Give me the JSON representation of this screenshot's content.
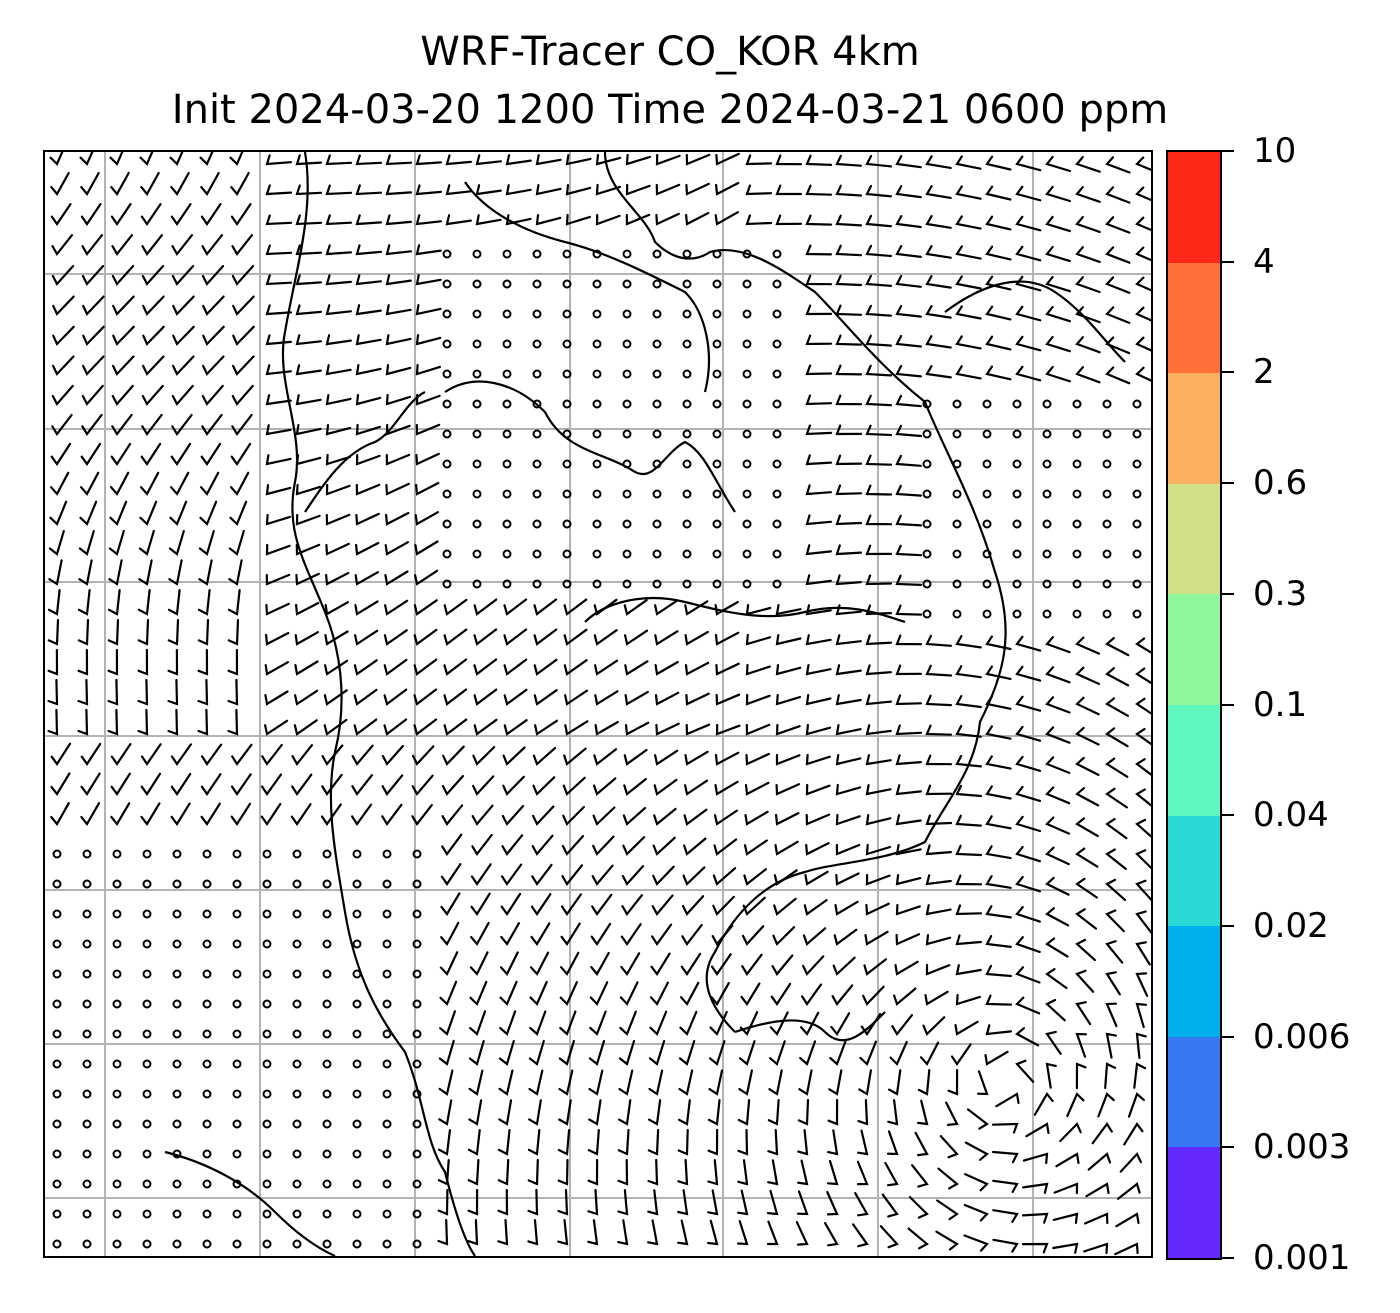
{
  "title": {
    "line1": "WRF-Tracer CO_KOR 4km",
    "line2": "Init 2024-03-20 1200 Time 2024-03-21 0600 ppm"
  },
  "map": {
    "gridlines": true,
    "wind_barbs": true,
    "coastlines": true
  },
  "colorbar": {
    "levels": [
      "0.001",
      "0.003",
      "0.006",
      "0.02",
      "0.04",
      "0.1",
      "0.3",
      "0.6",
      "2",
      "4",
      "10"
    ],
    "colors": [
      "#6528fa",
      "#3679f2",
      "#00b0ec",
      "#2ad9d6",
      "#5ef7bd",
      "#90f79d",
      "#d1e086",
      "#fbb060",
      "#ff7038",
      "#ff2818"
    ]
  }
}
